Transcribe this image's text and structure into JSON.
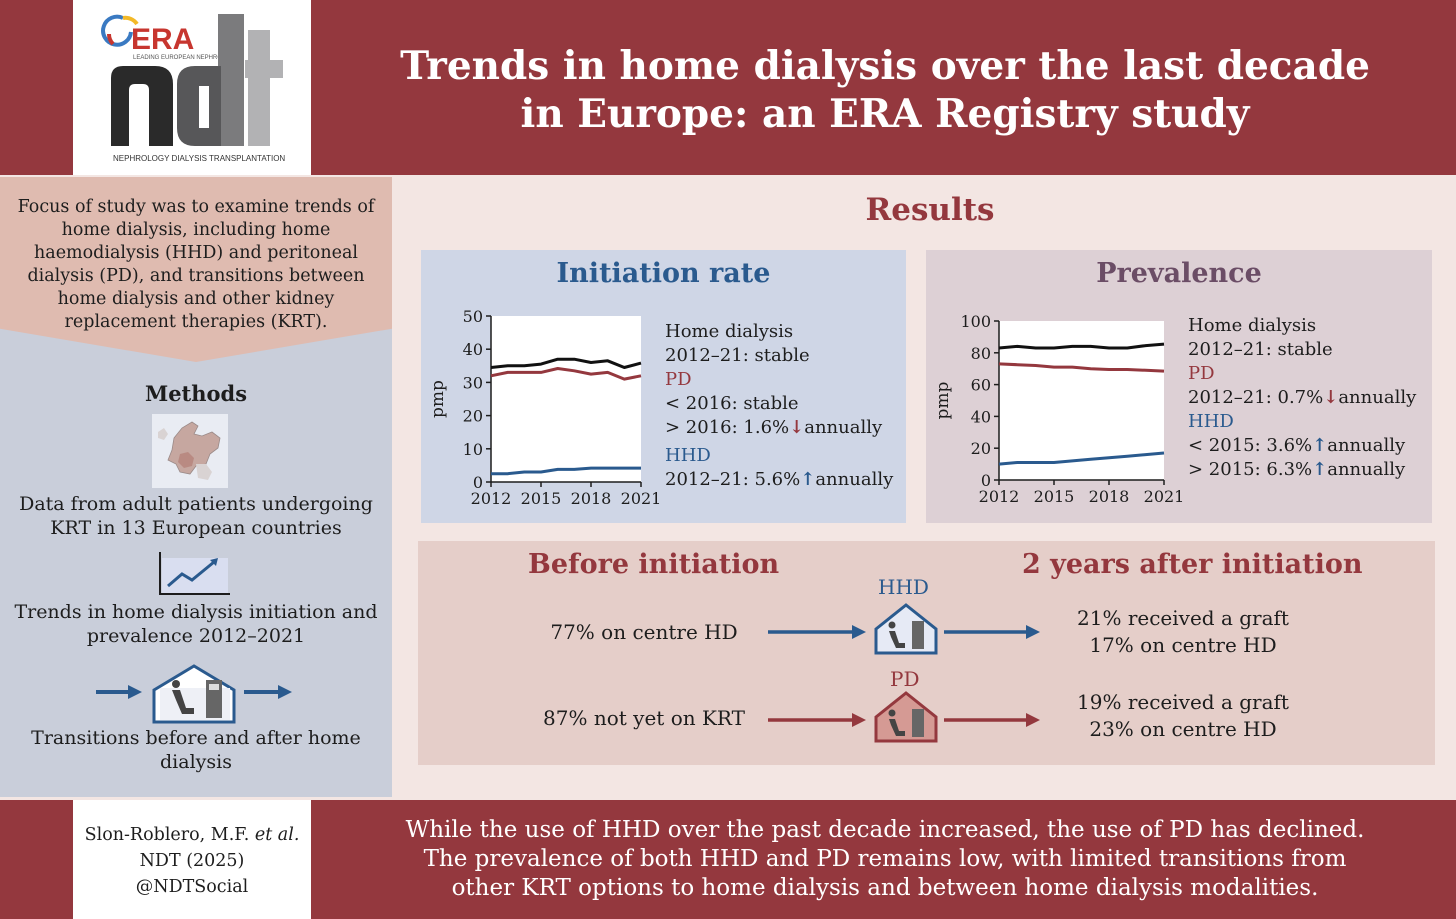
{
  "header": {
    "title_line1": "Trends in home dialysis over the last decade",
    "title_line2": "in Europe: an ERA Registry study",
    "logo": {
      "era_text": "ERA",
      "era_subtitle": "LEADING EUROPEAN NEPHROLOGY",
      "ndt_text": "ndt",
      "journal_name": "NEPHROLOGY DIALYSIS TRANSPLANTATION"
    }
  },
  "left": {
    "focus_text": "Focus of study was to examine trends of home dialysis, including home haemodialysis (HHD) and peritoneal dialysis (PD), and transitions between home dialysis and other kidney replacement therapies (KRT).",
    "methods_title": "Methods",
    "method1": "Data from adult patients undergoing KRT in 13 European countries",
    "method2": "Trends in home dialysis initiation and prevalence 2012–2021",
    "method3": "Transitions before and after home dialysis"
  },
  "results_title": "Results",
  "initiation": {
    "title": "Initiation rate",
    "legend": {
      "home_label": "Home dialysis",
      "home_text": "2012–21: stable",
      "pd_label": "PD",
      "pd_line1": "< 2016: stable",
      "pd_line2_pre": "> 2016: 1.6%",
      "pd_line2_post": "annually",
      "hhd_label": "HHD",
      "hhd_line1_pre": "2012–21: 5.6%",
      "hhd_line1_post": "annually"
    }
  },
  "prevalence": {
    "title": "Prevalence",
    "legend": {
      "home_label": "Home dialysis",
      "home_text": "2012–21: stable",
      "pd_label": "PD",
      "pd_line1_pre": "2012–21: 0.7%",
      "pd_line1_post": "annually",
      "hhd_label": "HHD",
      "hhd_line1_pre": "< 2015: 3.6%",
      "hhd_line1_post": "annually",
      "hhd_line2_pre": "> 2015: 6.3%",
      "hhd_line2_post": "annually"
    }
  },
  "transitions": {
    "before_title": "Before initiation",
    "after_title": "2 years after initiation",
    "hhd_label": "HHD",
    "pd_label": "PD",
    "hhd_before": "77% on centre HD",
    "hhd_after_line1": "21% received a graft",
    "hhd_after_line2": "17% on centre HD",
    "pd_before": "87% not yet on KRT",
    "pd_after_line1": "19% received a graft",
    "pd_after_line2": "23% on centre HD"
  },
  "footer": {
    "citation_line1_pre": "Slon-Roblero, M.F. ",
    "citation_line1_em": "et al.",
    "citation_line2": "NDT (2025)",
    "citation_line3": "@NDTSocial",
    "conclusion_line1": "While the use of HHD over the past decade increased, the use of PD has declined.",
    "conclusion_line2": "The prevalence of both HHD and PD remains low, with limited transitions from",
    "conclusion_line3": "other KRT options to home dialysis and between home dialysis modalities."
  },
  "colors": {
    "brand_red": "#94383e",
    "hhd_blue": "#2a5a8e",
    "home_black": "#111111"
  },
  "chart_data": [
    {
      "type": "line",
      "title": "Initiation rate",
      "xlabel": "",
      "ylabel": "pmp",
      "x": [
        2012,
        2013,
        2014,
        2015,
        2016,
        2017,
        2018,
        2019,
        2020,
        2021
      ],
      "xticks": [
        "2012",
        "2015",
        "2018",
        "2021"
      ],
      "yticks": [
        "0",
        "10",
        "20",
        "30",
        "40",
        "50"
      ],
      "ylim": [
        0,
        50
      ],
      "series": [
        {
          "name": "Home dialysis",
          "color": "#111111",
          "values": [
            34.5,
            35,
            35,
            35.5,
            37,
            37,
            36,
            36.5,
            34.5,
            35.8
          ]
        },
        {
          "name": "PD",
          "color": "#94383e",
          "values": [
            32,
            33,
            33,
            33,
            34.2,
            33.5,
            32.5,
            33,
            31,
            32
          ]
        },
        {
          "name": "HHD",
          "color": "#2a5a8e",
          "values": [
            2.5,
            2.5,
            3,
            3,
            3.8,
            3.8,
            4.2,
            4.2,
            4.2,
            4.2
          ]
        }
      ]
    },
    {
      "type": "line",
      "title": "Prevalence",
      "xlabel": "",
      "ylabel": "pmp",
      "x": [
        2012,
        2013,
        2014,
        2015,
        2016,
        2017,
        2018,
        2019,
        2020,
        2021
      ],
      "xticks": [
        "2012",
        "2015",
        "2018",
        "2021"
      ],
      "yticks": [
        "0",
        "20",
        "40",
        "60",
        "80",
        "100"
      ],
      "ylim": [
        0,
        100
      ],
      "series": [
        {
          "name": "Home dialysis",
          "color": "#111111",
          "values": [
            83,
            84,
            83,
            83,
            84,
            84,
            83,
            83,
            84.5,
            85.5
          ]
        },
        {
          "name": "PD",
          "color": "#94383e",
          "values": [
            73,
            72.5,
            72,
            71,
            71,
            70,
            69.5,
            69.5,
            69,
            68.5
          ]
        },
        {
          "name": "HHD",
          "color": "#2a5a8e",
          "values": [
            10,
            11,
            11,
            11,
            12,
            13,
            14,
            15,
            16,
            17
          ]
        }
      ]
    }
  ]
}
